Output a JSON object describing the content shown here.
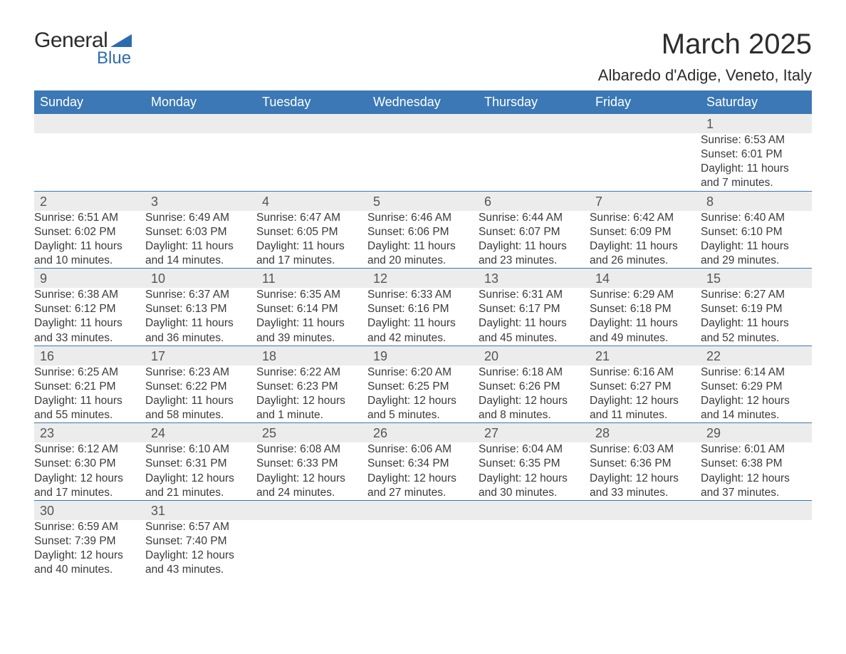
{
  "brand": {
    "word1": "General",
    "word2": "Blue",
    "accent_color": "#2b6cb0"
  },
  "title": "March 2025",
  "location": "Albaredo d'Adige, Veneto, Italy",
  "header_bg": "#3b78b5",
  "header_text": "#ffffff",
  "stripe_bg": "#ececec",
  "day_headers": [
    "Sunday",
    "Monday",
    "Tuesday",
    "Wednesday",
    "Thursday",
    "Friday",
    "Saturday"
  ],
  "weeks": [
    [
      null,
      null,
      null,
      null,
      null,
      null,
      {
        "n": "1",
        "sr": "Sunrise: 6:53 AM",
        "ss": "Sunset: 6:01 PM",
        "dl1": "Daylight: 11 hours",
        "dl2": "and 7 minutes."
      }
    ],
    [
      {
        "n": "2",
        "sr": "Sunrise: 6:51 AM",
        "ss": "Sunset: 6:02 PM",
        "dl1": "Daylight: 11 hours",
        "dl2": "and 10 minutes."
      },
      {
        "n": "3",
        "sr": "Sunrise: 6:49 AM",
        "ss": "Sunset: 6:03 PM",
        "dl1": "Daylight: 11 hours",
        "dl2": "and 14 minutes."
      },
      {
        "n": "4",
        "sr": "Sunrise: 6:47 AM",
        "ss": "Sunset: 6:05 PM",
        "dl1": "Daylight: 11 hours",
        "dl2": "and 17 minutes."
      },
      {
        "n": "5",
        "sr": "Sunrise: 6:46 AM",
        "ss": "Sunset: 6:06 PM",
        "dl1": "Daylight: 11 hours",
        "dl2": "and 20 minutes."
      },
      {
        "n": "6",
        "sr": "Sunrise: 6:44 AM",
        "ss": "Sunset: 6:07 PM",
        "dl1": "Daylight: 11 hours",
        "dl2": "and 23 minutes."
      },
      {
        "n": "7",
        "sr": "Sunrise: 6:42 AM",
        "ss": "Sunset: 6:09 PM",
        "dl1": "Daylight: 11 hours",
        "dl2": "and 26 minutes."
      },
      {
        "n": "8",
        "sr": "Sunrise: 6:40 AM",
        "ss": "Sunset: 6:10 PM",
        "dl1": "Daylight: 11 hours",
        "dl2": "and 29 minutes."
      }
    ],
    [
      {
        "n": "9",
        "sr": "Sunrise: 6:38 AM",
        "ss": "Sunset: 6:12 PM",
        "dl1": "Daylight: 11 hours",
        "dl2": "and 33 minutes."
      },
      {
        "n": "10",
        "sr": "Sunrise: 6:37 AM",
        "ss": "Sunset: 6:13 PM",
        "dl1": "Daylight: 11 hours",
        "dl2": "and 36 minutes."
      },
      {
        "n": "11",
        "sr": "Sunrise: 6:35 AM",
        "ss": "Sunset: 6:14 PM",
        "dl1": "Daylight: 11 hours",
        "dl2": "and 39 minutes."
      },
      {
        "n": "12",
        "sr": "Sunrise: 6:33 AM",
        "ss": "Sunset: 6:16 PM",
        "dl1": "Daylight: 11 hours",
        "dl2": "and 42 minutes."
      },
      {
        "n": "13",
        "sr": "Sunrise: 6:31 AM",
        "ss": "Sunset: 6:17 PM",
        "dl1": "Daylight: 11 hours",
        "dl2": "and 45 minutes."
      },
      {
        "n": "14",
        "sr": "Sunrise: 6:29 AM",
        "ss": "Sunset: 6:18 PM",
        "dl1": "Daylight: 11 hours",
        "dl2": "and 49 minutes."
      },
      {
        "n": "15",
        "sr": "Sunrise: 6:27 AM",
        "ss": "Sunset: 6:19 PM",
        "dl1": "Daylight: 11 hours",
        "dl2": "and 52 minutes."
      }
    ],
    [
      {
        "n": "16",
        "sr": "Sunrise: 6:25 AM",
        "ss": "Sunset: 6:21 PM",
        "dl1": "Daylight: 11 hours",
        "dl2": "and 55 minutes."
      },
      {
        "n": "17",
        "sr": "Sunrise: 6:23 AM",
        "ss": "Sunset: 6:22 PM",
        "dl1": "Daylight: 11 hours",
        "dl2": "and 58 minutes."
      },
      {
        "n": "18",
        "sr": "Sunrise: 6:22 AM",
        "ss": "Sunset: 6:23 PM",
        "dl1": "Daylight: 12 hours",
        "dl2": "and 1 minute."
      },
      {
        "n": "19",
        "sr": "Sunrise: 6:20 AM",
        "ss": "Sunset: 6:25 PM",
        "dl1": "Daylight: 12 hours",
        "dl2": "and 5 minutes."
      },
      {
        "n": "20",
        "sr": "Sunrise: 6:18 AM",
        "ss": "Sunset: 6:26 PM",
        "dl1": "Daylight: 12 hours",
        "dl2": "and 8 minutes."
      },
      {
        "n": "21",
        "sr": "Sunrise: 6:16 AM",
        "ss": "Sunset: 6:27 PM",
        "dl1": "Daylight: 12 hours",
        "dl2": "and 11 minutes."
      },
      {
        "n": "22",
        "sr": "Sunrise: 6:14 AM",
        "ss": "Sunset: 6:29 PM",
        "dl1": "Daylight: 12 hours",
        "dl2": "and 14 minutes."
      }
    ],
    [
      {
        "n": "23",
        "sr": "Sunrise: 6:12 AM",
        "ss": "Sunset: 6:30 PM",
        "dl1": "Daylight: 12 hours",
        "dl2": "and 17 minutes."
      },
      {
        "n": "24",
        "sr": "Sunrise: 6:10 AM",
        "ss": "Sunset: 6:31 PM",
        "dl1": "Daylight: 12 hours",
        "dl2": "and 21 minutes."
      },
      {
        "n": "25",
        "sr": "Sunrise: 6:08 AM",
        "ss": "Sunset: 6:33 PM",
        "dl1": "Daylight: 12 hours",
        "dl2": "and 24 minutes."
      },
      {
        "n": "26",
        "sr": "Sunrise: 6:06 AM",
        "ss": "Sunset: 6:34 PM",
        "dl1": "Daylight: 12 hours",
        "dl2": "and 27 minutes."
      },
      {
        "n": "27",
        "sr": "Sunrise: 6:04 AM",
        "ss": "Sunset: 6:35 PM",
        "dl1": "Daylight: 12 hours",
        "dl2": "and 30 minutes."
      },
      {
        "n": "28",
        "sr": "Sunrise: 6:03 AM",
        "ss": "Sunset: 6:36 PM",
        "dl1": "Daylight: 12 hours",
        "dl2": "and 33 minutes."
      },
      {
        "n": "29",
        "sr": "Sunrise: 6:01 AM",
        "ss": "Sunset: 6:38 PM",
        "dl1": "Daylight: 12 hours",
        "dl2": "and 37 minutes."
      }
    ],
    [
      {
        "n": "30",
        "sr": "Sunrise: 6:59 AM",
        "ss": "Sunset: 7:39 PM",
        "dl1": "Daylight: 12 hours",
        "dl2": "and 40 minutes."
      },
      {
        "n": "31",
        "sr": "Sunrise: 6:57 AM",
        "ss": "Sunset: 7:40 PM",
        "dl1": "Daylight: 12 hours",
        "dl2": "and 43 minutes."
      },
      null,
      null,
      null,
      null,
      null
    ]
  ]
}
